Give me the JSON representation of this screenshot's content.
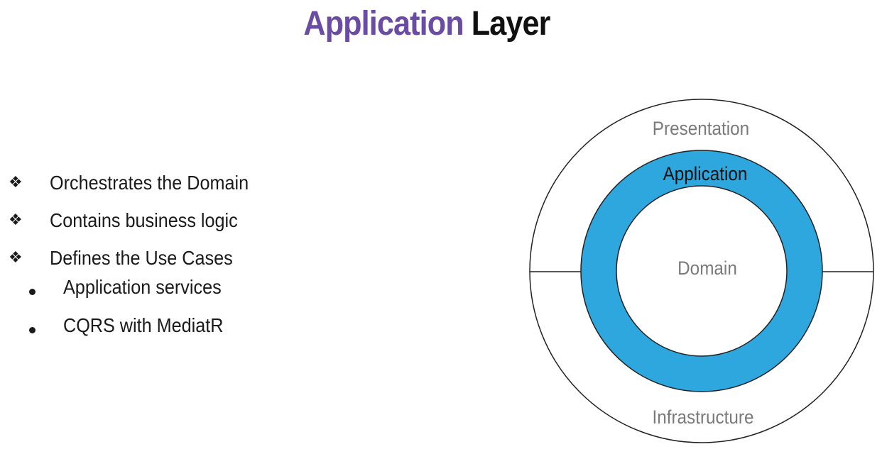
{
  "title": {
    "accent": "Application",
    "rest": "Layer"
  },
  "bullets": [
    {
      "marker": "❖",
      "text": "Orchestrates the Domain"
    },
    {
      "marker": "❖",
      "text": "Contains business logic"
    },
    {
      "marker": "❖",
      "text": "Defines the Use Cases"
    }
  ],
  "sub_bullets": [
    {
      "text": "Application services"
    },
    {
      "text": "CQRS with MediatR"
    }
  ],
  "diagram": {
    "outer_top_label": "Presentation",
    "outer_bottom_label": "Infrastructure",
    "ring_label": "Application",
    "core_label": "Domain",
    "colors": {
      "ring_fill": "#2ea7df",
      "outer_label": "#7a7a7a",
      "ring_label": "#111111",
      "core_label": "#7a7a7a",
      "title_accent": "#6a4ca5"
    }
  }
}
